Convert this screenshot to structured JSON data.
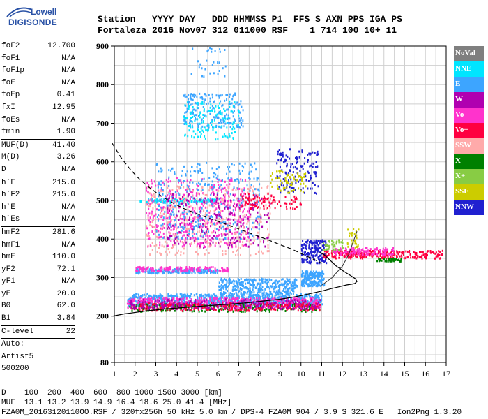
{
  "logo": {
    "line1": "Lowell",
    "line2": "DIGISONDE"
  },
  "header": {
    "labels": "Station   YYYY DAY   DDD HHMMSS P1  FFS S AXN PPS IGA PS",
    "values": "Fortaleza 2016 Nov07 312 011000 RSF    1 714 100 10+ 11"
  },
  "params": [
    {
      "k": "foF2",
      "v": "12.700"
    },
    {
      "k": "foF1",
      "v": "N/A"
    },
    {
      "k": "foF1p",
      "v": "N/A"
    },
    {
      "k": "foE",
      "v": "N/A"
    },
    {
      "k": "foEp",
      "v": "0.41"
    },
    {
      "k": "fxI",
      "v": "12.95"
    },
    {
      "k": "foEs",
      "v": "N/A"
    },
    {
      "k": "fmin",
      "v": "1.90"
    },
    {
      "sep": true
    },
    {
      "k": "MUF(D)",
      "v": "41.40"
    },
    {
      "k": "M(D)",
      "v": "3.26"
    },
    {
      "k": "D",
      "v": "N/A"
    },
    {
      "sep": true
    },
    {
      "k": "h`F",
      "v": "215.0"
    },
    {
      "k": "h`F2",
      "v": "215.0"
    },
    {
      "k": "h`E",
      "v": "N/A"
    },
    {
      "k": "h`Es",
      "v": "N/A"
    },
    {
      "sep": true
    },
    {
      "k": "hmF2",
      "v": "281.6"
    },
    {
      "k": "hmF1",
      "v": "N/A"
    },
    {
      "k": "hmE",
      "v": "110.0"
    },
    {
      "k": "yF2",
      "v": "72.1"
    },
    {
      "k": "yF1",
      "v": "N/A"
    },
    {
      "k": "yE",
      "v": "20.0"
    },
    {
      "k": "B0",
      "v": "62.0"
    },
    {
      "k": "B1",
      "v": "3.84"
    },
    {
      "sep": true
    },
    {
      "k": "C-level",
      "v": "22"
    },
    {
      "sep": true
    },
    {
      "k": "Auto:",
      "v": ""
    },
    {
      "k": "Artist5",
      "v": ""
    },
    {
      "k": "500200",
      "v": ""
    }
  ],
  "footer": {
    "d_row": "D    100  200  400  600  800 1000 1500 3000 [km]",
    "muf_row": "MUF  13.1 13.2 13.9 14.9 16.4 18.6 25.0 41.4 [MHz]",
    "file_row": "FZA0M_20163120110OO.RSF / 320fx256h 50 kHz 5.0 km / DPS-4 FZA0M 904 / 3.9 S 321.6 E   Ion2Png 1.3.20"
  },
  "legend": [
    {
      "name": "NoVal",
      "color": "#7f7f7f"
    },
    {
      "name": "NNE",
      "color": "#00e5ff"
    },
    {
      "name": "E",
      "color": "#3da5ff"
    },
    {
      "name": "W",
      "color": "#b000b0"
    },
    {
      "name": "Vo-",
      "color": "#ff33cc"
    },
    {
      "name": "Vo+",
      "color": "#ff0040"
    },
    {
      "name": "SSW",
      "color": "#ffaaaa"
    },
    {
      "name": "X-",
      "color": "#008000"
    },
    {
      "name": "X+",
      "color": "#88cc44"
    },
    {
      "name": "SSE",
      "color": "#cccc00"
    },
    {
      "name": "NNW",
      "color": "#2020d0"
    }
  ],
  "chart_data": {
    "type": "scatter",
    "xlabel": "",
    "ylabel": "",
    "xlim": [
      1,
      17
    ],
    "ylim": [
      80,
      900
    ],
    "x_ticks": [
      1,
      2,
      3,
      4,
      5,
      6,
      7,
      8,
      9,
      10,
      11,
      12,
      13,
      14,
      15,
      16,
      17
    ],
    "y_ticks": [
      80,
      200,
      300,
      400,
      500,
      600,
      700,
      800,
      900
    ],
    "x_grid_step": 0.5,
    "y_grid_step": 50,
    "grid": true,
    "legend_position": "right",
    "profile_curve": {
      "freq": [
        0.92,
        1.2,
        1.5,
        1.8,
        2.2,
        2.6,
        3.0,
        3.5,
        4.0,
        4.5,
        5.0,
        5.5,
        6.0,
        6.5,
        7.0,
        7.5,
        8.0,
        8.5,
        9.0,
        9.5,
        10.0,
        10.5,
        11.0,
        11.5,
        11.9,
        12.2,
        12.45,
        12.6,
        12.7,
        12.62,
        12.4,
        12.1,
        11.7,
        11.4,
        11.1,
        10.9
      ],
      "height": [
        200,
        203,
        206,
        208,
        211,
        214,
        216,
        219,
        221,
        223,
        225,
        227,
        229,
        231,
        233,
        235,
        238,
        241,
        244,
        248,
        253,
        259,
        265,
        272,
        277,
        281,
        283,
        285,
        290,
        297,
        305,
        315,
        330,
        345,
        360,
        365
      ]
    },
    "dashed_curve": {
      "freq": [
        0.9,
        1.3,
        1.7,
        2.1,
        2.6,
        3.1,
        3.7,
        4.3,
        4.9,
        5.5,
        6.1,
        6.7,
        7.3,
        7.9,
        8.5,
        9.0,
        9.5,
        9.9,
        10.3,
        10.7,
        11.0
      ],
      "height": [
        648,
        613,
        585,
        561,
        537,
        517,
        497,
        480,
        467,
        455,
        444,
        432,
        420,
        408,
        396,
        385,
        375,
        365,
        355,
        345,
        337
      ]
    },
    "virtual_trace": {
      "freq": [
        11.0,
        11.5,
        12.0,
        12.3,
        12.5,
        12.7
      ],
      "height": [
        280,
        300,
        330,
        360,
        390,
        420
      ]
    },
    "clusters": [
      {
        "color": "#3da5ff",
        "f": [
          1.6,
          11.0
        ],
        "h": [
          228,
          260
        ],
        "n": 900
      },
      {
        "color": "#ff33cc",
        "f": [
          1.6,
          10.9
        ],
        "h": [
          222,
          250
        ],
        "n": 500
      },
      {
        "color": "#008000",
        "f": [
          1.7,
          10.9
        ],
        "h": [
          214,
          234
        ],
        "n": 250
      },
      {
        "color": "#ff0040",
        "f": [
          1.8,
          10.9
        ],
        "h": [
          216,
          236
        ],
        "n": 260
      },
      {
        "color": "#b000b0",
        "f": [
          1.7,
          10.9
        ],
        "h": [
          220,
          246
        ],
        "n": 220
      },
      {
        "color": "#3da5ff",
        "f": [
          6.0,
          9.8
        ],
        "h": [
          260,
          300
        ],
        "n": 350
      },
      {
        "color": "#3da5ff",
        "f": [
          2.0,
          6.0
        ],
        "h": [
          313,
          325
        ],
        "n": 200
      },
      {
        "color": "#ff33cc",
        "f": [
          2.0,
          6.5
        ],
        "h": [
          318,
          330
        ],
        "n": 140
      },
      {
        "color": "#00e5ff",
        "f": [
          2.2,
          6.0
        ],
        "h": [
          496,
          506
        ],
        "n": 120
      },
      {
        "color": "#3da5ff",
        "f": [
          4.3,
          7.2
        ],
        "h": [
          690,
          780
        ],
        "n": 200
      },
      {
        "color": "#00e5ff",
        "f": [
          4.3,
          7.0
        ],
        "h": [
          660,
          760
        ],
        "n": 140
      },
      {
        "color": "#ff33cc",
        "f": [
          2.5,
          7.5
        ],
        "h": [
          380,
          560
        ],
        "n": 500
      },
      {
        "color": "#ffaaaa",
        "f": [
          2.5,
          8.5
        ],
        "h": [
          360,
          540
        ],
        "n": 420
      },
      {
        "color": "#3da5ff",
        "f": [
          3.0,
          8.0
        ],
        "h": [
          400,
          600
        ],
        "n": 320
      },
      {
        "color": "#b000b0",
        "f": [
          3.5,
          8.5
        ],
        "h": [
          380,
          520
        ],
        "n": 200
      },
      {
        "color": "#2020d0",
        "f": [
          8.8,
          10.8
        ],
        "h": [
          520,
          640
        ],
        "n": 150
      },
      {
        "color": "#cccc00",
        "f": [
          8.5,
          10.2
        ],
        "h": [
          520,
          580
        ],
        "n": 70
      },
      {
        "color": "#ff0040",
        "f": [
          7.0,
          10.0
        ],
        "h": [
          480,
          520
        ],
        "n": 90
      },
      {
        "color": "#2020d0",
        "f": [
          10.0,
          11.2
        ],
        "h": [
          340,
          400
        ],
        "n": 180
      },
      {
        "color": "#ff0040",
        "f": [
          11.0,
          16.8
        ],
        "h": [
          352,
          372
        ],
        "n": 260
      },
      {
        "color": "#ff33cc",
        "f": [
          11.5,
          14.5
        ],
        "h": [
          360,
          380
        ],
        "n": 120
      },
      {
        "color": "#3da5ff",
        "f": [
          10.0,
          11.1
        ],
        "h": [
          280,
          320
        ],
        "n": 200
      },
      {
        "color": "#008000",
        "f": [
          13.6,
          14.8
        ],
        "h": [
          344,
          352
        ],
        "n": 40
      },
      {
        "color": "#cccc00",
        "f": [
          12.2,
          12.8
        ],
        "h": [
          380,
          430
        ],
        "n": 30
      },
      {
        "color": "#88cc44",
        "f": [
          11.0,
          12.0
        ],
        "h": [
          370,
          400
        ],
        "n": 40
      },
      {
        "color": "#3da5ff",
        "f": [
          4.5,
          6.5
        ],
        "h": [
          820,
          900
        ],
        "n": 30
      }
    ]
  }
}
